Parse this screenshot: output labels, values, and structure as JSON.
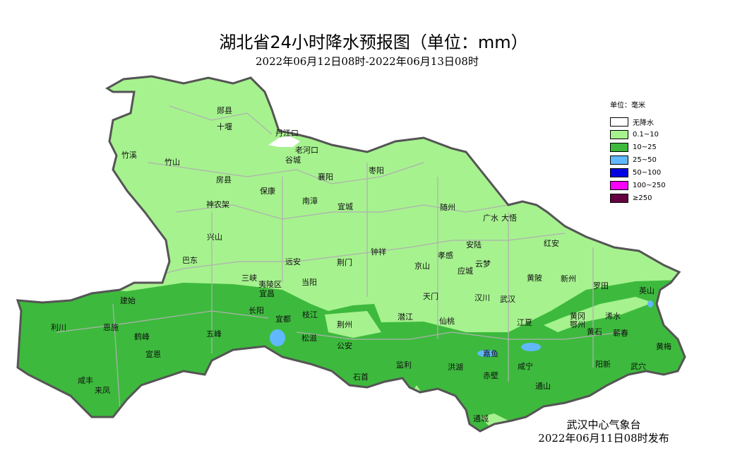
{
  "title": "湖北省24小时降水预报图（单位：mm）",
  "subtitle": "2022年06月12日08时-2022年06月13日08时",
  "legend": {
    "unit_label": "单位：毫米",
    "items": [
      {
        "label": "无降水",
        "color": "#ffffff"
      },
      {
        "label": "0.1~10",
        "color": "#a6f28f"
      },
      {
        "label": "10~25",
        "color": "#3dba3d"
      },
      {
        "label": "25~50",
        "color": "#61b8ff"
      },
      {
        "label": "50~100",
        "color": "#0000e1"
      },
      {
        "label": "100~250",
        "color": "#fa00fa"
      },
      {
        "label": "≥250",
        "color": "#640040"
      }
    ]
  },
  "places": [
    "郧县",
    "十堰",
    "丹江口",
    "老河口",
    "谷城",
    "竹溪",
    "竹山",
    "房县",
    "保康",
    "襄阳",
    "枣阳",
    "南漳",
    "宜城",
    "神农架",
    "兴山",
    "巴东",
    "随州",
    "广水",
    "大悟",
    "安陆",
    "红安",
    "钟祥",
    "荆门",
    "远安",
    "京山",
    "应城",
    "云梦",
    "孝感",
    "黄陂",
    "新州",
    "三峡",
    "夷陵区",
    "宜昌",
    "当阳",
    "天门",
    "汉川",
    "武汉",
    "罗田",
    "英山",
    "建始",
    "恩施",
    "利川",
    "长阳",
    "宜都",
    "枝江",
    "荆州",
    "潜江",
    "仙桃",
    "江夏",
    "黄冈",
    "鄂州",
    "浠水",
    "黄石",
    "蕲春",
    "五峰",
    "松滋",
    "公安",
    "嘉鱼",
    "咸宁",
    "阳新",
    "黄梅",
    "武穴",
    "鹤峰",
    "宣恩",
    "咸丰",
    "来凤",
    "石首",
    "监利",
    "洪湖",
    "赤壁",
    "通山",
    "通城"
  ],
  "footer": {
    "issuer": "武汉中心气象台",
    "issued": "2022年06月11日08时发布"
  }
}
